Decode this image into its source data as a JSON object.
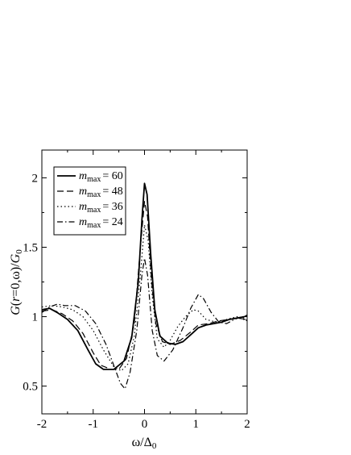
{
  "chart_data": {
    "type": "line",
    "xlabel": "ω/Δ0",
    "ylabel": "G(r=0,ω)/G0",
    "xlim": [
      -2,
      2
    ],
    "ylim": [
      0.3,
      2.2
    ],
    "x_ticks": [
      -2,
      -1,
      0,
      1,
      2
    ],
    "y_ticks": [
      0.5,
      1,
      1.5,
      2
    ],
    "x_tick_labels": [
      "-2",
      "-1",
      "0",
      "1",
      "2"
    ],
    "y_tick_labels": [
      "0.5",
      "1",
      "1.5",
      "2"
    ],
    "grid": false,
    "legend_position": "top-left",
    "series": [
      {
        "name": "m_max = 60",
        "legend_label": {
          "m": "m",
          "sub": "max",
          "value": "= 60"
        },
        "style": "solid",
        "points": [
          [
            -2,
            1.05
          ],
          [
            -1.85,
            1.06
          ],
          [
            -1.7,
            1.03
          ],
          [
            -1.5,
            0.98
          ],
          [
            -1.3,
            0.9
          ],
          [
            -1.1,
            0.76
          ],
          [
            -0.95,
            0.66
          ],
          [
            -0.8,
            0.62
          ],
          [
            -0.6,
            0.62
          ],
          [
            -0.4,
            0.68
          ],
          [
            -0.25,
            0.85
          ],
          [
            -0.12,
            1.25
          ],
          [
            -0.05,
            1.7
          ],
          [
            0,
            1.96
          ],
          [
            0.05,
            1.88
          ],
          [
            0.12,
            1.45
          ],
          [
            0.2,
            1.05
          ],
          [
            0.3,
            0.86
          ],
          [
            0.45,
            0.81
          ],
          [
            0.6,
            0.8
          ],
          [
            0.75,
            0.82
          ],
          [
            0.9,
            0.87
          ],
          [
            1.05,
            0.92
          ],
          [
            1.2,
            0.94
          ],
          [
            1.35,
            0.95
          ],
          [
            1.5,
            0.96
          ],
          [
            1.65,
            0.98
          ],
          [
            1.8,
            0.99
          ],
          [
            1.95,
            1.0
          ],
          [
            2,
            1.01
          ]
        ]
      },
      {
        "name": "m_max = 48",
        "legend_label": {
          "m": "m",
          "sub": "max",
          "value": "= 48"
        },
        "style": "dashed",
        "points": [
          [
            -2,
            1.04
          ],
          [
            -1.8,
            1.05
          ],
          [
            -1.6,
            1.02
          ],
          [
            -1.4,
            0.97
          ],
          [
            -1.2,
            0.88
          ],
          [
            -1.0,
            0.74
          ],
          [
            -0.85,
            0.65
          ],
          [
            -0.65,
            0.62
          ],
          [
            -0.5,
            0.62
          ],
          [
            -0.35,
            0.7
          ],
          [
            -0.2,
            0.95
          ],
          [
            -0.08,
            1.5
          ],
          [
            0,
            1.83
          ],
          [
            0.06,
            1.72
          ],
          [
            0.14,
            1.25
          ],
          [
            0.22,
            0.95
          ],
          [
            0.35,
            0.82
          ],
          [
            0.5,
            0.8
          ],
          [
            0.7,
            0.83
          ],
          [
            0.9,
            0.89
          ],
          [
            1.05,
            0.94
          ],
          [
            1.25,
            0.95
          ],
          [
            1.45,
            0.97
          ],
          [
            1.65,
            0.98
          ],
          [
            1.8,
            0.99
          ],
          [
            2,
            0.98
          ]
        ]
      },
      {
        "name": "m_max = 36",
        "legend_label": {
          "m": "m",
          "sub": "max",
          "value": "= 36"
        },
        "style": "dotted",
        "points": [
          [
            -2,
            1.07
          ],
          [
            -1.8,
            1.08
          ],
          [
            -1.6,
            1.07
          ],
          [
            -1.4,
            1.05
          ],
          [
            -1.2,
            1.0
          ],
          [
            -1.0,
            0.9
          ],
          [
            -0.8,
            0.76
          ],
          [
            -0.6,
            0.64
          ],
          [
            -0.45,
            0.61
          ],
          [
            -0.32,
            0.66
          ],
          [
            -0.2,
            0.86
          ],
          [
            -0.08,
            1.3
          ],
          [
            0,
            1.66
          ],
          [
            0.07,
            1.55
          ],
          [
            0.15,
            1.15
          ],
          [
            0.25,
            0.84
          ],
          [
            0.38,
            0.78
          ],
          [
            0.5,
            0.83
          ],
          [
            0.65,
            0.93
          ],
          [
            0.8,
            1.0
          ],
          [
            0.95,
            1.05
          ],
          [
            1.05,
            1.04
          ],
          [
            1.2,
            0.98
          ],
          [
            1.4,
            0.96
          ],
          [
            1.6,
            0.98
          ],
          [
            1.8,
            1.0
          ],
          [
            2,
            0.97
          ]
        ]
      },
      {
        "name": "m_max = 24",
        "legend_label": {
          "m": "m",
          "sub": "max",
          "value": "= 24"
        },
        "style": "dashdot",
        "points": [
          [
            -2,
            1.03
          ],
          [
            -1.85,
            1.07
          ],
          [
            -1.7,
            1.09
          ],
          [
            -1.55,
            1.08
          ],
          [
            -1.35,
            1.08
          ],
          [
            -1.15,
            1.04
          ],
          [
            -0.95,
            0.95
          ],
          [
            -0.75,
            0.8
          ],
          [
            -0.6,
            0.65
          ],
          [
            -0.47,
            0.52
          ],
          [
            -0.38,
            0.48
          ],
          [
            -0.28,
            0.6
          ],
          [
            -0.15,
            0.9
          ],
          [
            -0.05,
            1.3
          ],
          [
            0,
            1.42
          ],
          [
            0.06,
            1.3
          ],
          [
            0.15,
            0.9
          ],
          [
            0.25,
            0.72
          ],
          [
            0.38,
            0.68
          ],
          [
            0.55,
            0.76
          ],
          [
            0.75,
            0.92
          ],
          [
            0.9,
            1.06
          ],
          [
            1.05,
            1.16
          ],
          [
            1.15,
            1.13
          ],
          [
            1.3,
            1.03
          ],
          [
            1.45,
            0.96
          ],
          [
            1.6,
            0.95
          ],
          [
            1.75,
            0.98
          ],
          [
            1.9,
            1.0
          ],
          [
            2,
            0.97
          ]
        ]
      }
    ]
  }
}
